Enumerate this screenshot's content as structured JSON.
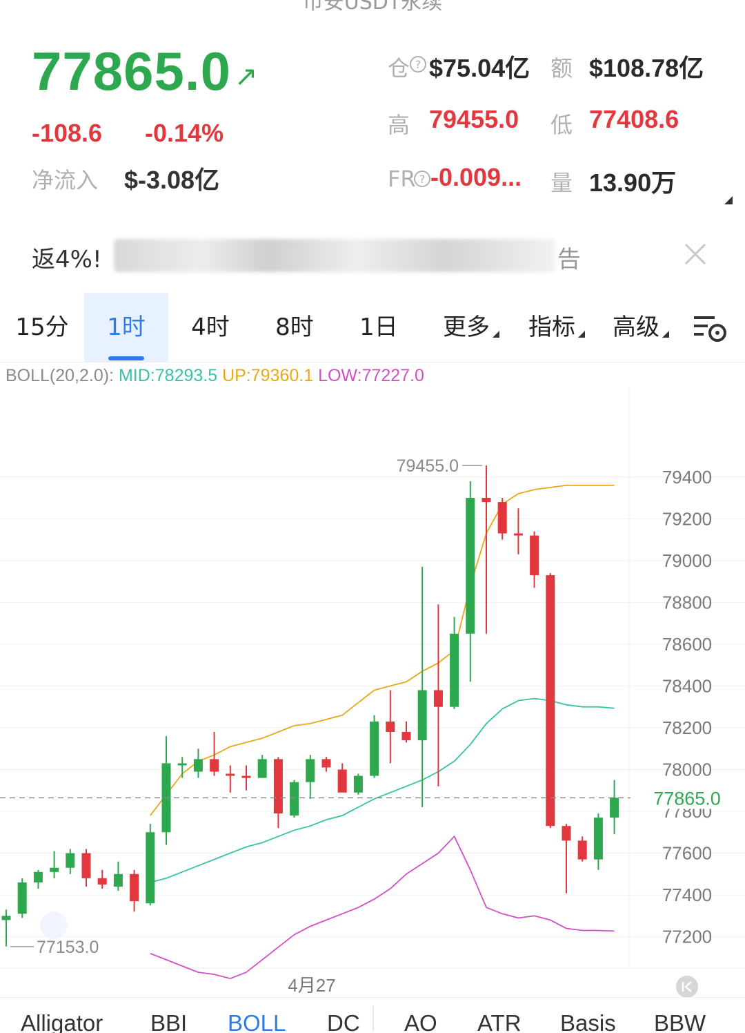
{
  "header": {
    "title": "币安USDT永续",
    "price": "77865.0",
    "price_arrow": "↗",
    "change_abs": "-108.6",
    "change_pct": "-0.14%",
    "netflow_label": "净流入",
    "netflow_value": "$-3.08亿"
  },
  "stats": {
    "oi_label": "仓",
    "oi_value": "$75.04亿",
    "turnover_label": "额",
    "turnover_value": "$108.78亿",
    "high_label": "高",
    "high_value": "79455.0",
    "low_label": "低",
    "low_value": "77408.6",
    "fr_label": "FR",
    "fr_value": "-0.009...",
    "volume_label": "量",
    "volume_value": "13.90万"
  },
  "banner": {
    "text_start": "返4%!",
    "text_end": "告"
  },
  "timeframe_tabs": [
    {
      "label": "15分"
    },
    {
      "label": "1时",
      "active": true
    },
    {
      "label": "4时"
    },
    {
      "label": "8时"
    },
    {
      "label": "1日"
    },
    {
      "label": "更多"
    },
    {
      "label": "指标"
    },
    {
      "label": "高级"
    }
  ],
  "boll_legend": {
    "prefix": "BOLL(20,2.0):",
    "mid": "MID:78293.5",
    "up": "UP:79360.1",
    "low": "LOW:77227.0"
  },
  "indicator_tabs": [
    "Alligator",
    "BBI",
    "BOLL",
    "DC",
    "AO",
    "ATR",
    "Basis",
    "BBW"
  ],
  "colors": {
    "up": "#2ea84f",
    "down": "#e0383e",
    "boll_mid": "#36c2a8",
    "boll_up": "#e8a817",
    "boll_low": "#d24fc4",
    "accent": "#2d7bea"
  },
  "chart_data": {
    "type": "candlestick",
    "x_label": "4月27",
    "y_ticks": [
      79400,
      79200,
      79000,
      78800,
      78600,
      78400,
      78200,
      78000,
      77800,
      77600,
      77400,
      77200
    ],
    "ylim": [
      77050,
      79700
    ],
    "last_price": 77865.0,
    "last_price_label": "77865.0",
    "max_label": "79455.0",
    "min_label": "77153.0",
    "candles": [
      {
        "o": 77280,
        "h": 77330,
        "l": 77153,
        "c": 77300
      },
      {
        "o": 77310,
        "h": 77480,
        "l": 77290,
        "c": 77460
      },
      {
        "o": 77460,
        "h": 77520,
        "l": 77430,
        "c": 77510
      },
      {
        "o": 77510,
        "h": 77610,
        "l": 77480,
        "c": 77530
      },
      {
        "o": 77530,
        "h": 77620,
        "l": 77500,
        "c": 77600
      },
      {
        "o": 77600,
        "h": 77620,
        "l": 77440,
        "c": 77480
      },
      {
        "o": 77480,
        "h": 77520,
        "l": 77430,
        "c": 77450
      },
      {
        "o": 77440,
        "h": 77560,
        "l": 77420,
        "c": 77500
      },
      {
        "o": 77500,
        "h": 77520,
        "l": 77320,
        "c": 77370
      },
      {
        "o": 77360,
        "h": 77740,
        "l": 77350,
        "c": 77700
      },
      {
        "o": 77700,
        "h": 78160,
        "l": 77640,
        "c": 78030
      },
      {
        "o": 78020,
        "h": 78060,
        "l": 77960,
        "c": 78030
      },
      {
        "o": 77990,
        "h": 78100,
        "l": 77960,
        "c": 78050
      },
      {
        "o": 78050,
        "h": 78180,
        "l": 77970,
        "c": 77990
      },
      {
        "o": 77980,
        "h": 78020,
        "l": 77890,
        "c": 77970
      },
      {
        "o": 77970,
        "h": 78020,
        "l": 77900,
        "c": 77960
      },
      {
        "o": 77960,
        "h": 78070,
        "l": 77960,
        "c": 78050
      },
      {
        "o": 78050,
        "h": 78060,
        "l": 77720,
        "c": 77790
      },
      {
        "o": 77780,
        "h": 77950,
        "l": 77770,
        "c": 77940
      },
      {
        "o": 77940,
        "h": 78070,
        "l": 77860,
        "c": 78050
      },
      {
        "o": 78050,
        "h": 78060,
        "l": 77990,
        "c": 78010
      },
      {
        "o": 78000,
        "h": 78030,
        "l": 77900,
        "c": 77890
      },
      {
        "o": 77890,
        "h": 77980,
        "l": 77880,
        "c": 77970
      },
      {
        "o": 77970,
        "h": 78260,
        "l": 77960,
        "c": 78230
      },
      {
        "o": 78230,
        "h": 78380,
        "l": 78030,
        "c": 78180
      },
      {
        "o": 78180,
        "h": 78230,
        "l": 78130,
        "c": 78140
      },
      {
        "o": 78140,
        "h": 78970,
        "l": 77820,
        "c": 78380
      },
      {
        "o": 78380,
        "h": 78790,
        "l": 77920,
        "c": 78300
      },
      {
        "o": 78300,
        "h": 78730,
        "l": 78290,
        "c": 78650
      },
      {
        "o": 78650,
        "h": 79380,
        "l": 78420,
        "c": 79300
      },
      {
        "o": 79300,
        "h": 79455,
        "l": 78650,
        "c": 79280
      },
      {
        "o": 79280,
        "h": 79300,
        "l": 79100,
        "c": 79130
      },
      {
        "o": 79130,
        "h": 79250,
        "l": 79030,
        "c": 79120
      },
      {
        "o": 79120,
        "h": 79140,
        "l": 78870,
        "c": 78930
      },
      {
        "o": 78930,
        "h": 78940,
        "l": 77720,
        "c": 77730
      },
      {
        "o": 77730,
        "h": 77740,
        "l": 77408,
        "c": 77660
      },
      {
        "o": 77660,
        "h": 77680,
        "l": 77560,
        "c": 77570
      },
      {
        "o": 77570,
        "h": 77790,
        "l": 77520,
        "c": 77770
      },
      {
        "o": 77770,
        "h": 77950,
        "l": 77690,
        "c": 77865
      }
    ],
    "series": [
      {
        "name": "UP",
        "values": [
          null,
          null,
          null,
          null,
          null,
          null,
          null,
          null,
          null,
          77780,
          77880,
          77980,
          78040,
          78070,
          78110,
          78130,
          78150,
          78180,
          78210,
          78220,
          78240,
          78260,
          78320,
          78380,
          78400,
          78420,
          78470,
          78510,
          78570,
          78880,
          79130,
          79270,
          79320,
          79340,
          79350,
          79360,
          79360,
          79360,
          79360
        ]
      },
      {
        "name": "MID",
        "values": [
          null,
          null,
          null,
          null,
          null,
          null,
          null,
          null,
          null,
          77460,
          77480,
          77510,
          77540,
          77570,
          77600,
          77630,
          77650,
          77680,
          77710,
          77730,
          77760,
          77780,
          77820,
          77860,
          77890,
          77920,
          77950,
          77990,
          78040,
          78120,
          78220,
          78290,
          78330,
          78340,
          78330,
          78310,
          78300,
          78300,
          78293.5
        ]
      },
      {
        "name": "LOW",
        "values": [
          null,
          null,
          null,
          null,
          null,
          null,
          null,
          null,
          null,
          77120,
          77090,
          77060,
          77030,
          77020,
          77000,
          77030,
          77090,
          77150,
          77210,
          77250,
          77280,
          77310,
          77340,
          77380,
          77430,
          77500,
          77550,
          77600,
          77680,
          77520,
          77340,
          77310,
          77290,
          77300,
          77280,
          77240,
          77230,
          77230,
          77227
        ]
      }
    ]
  }
}
